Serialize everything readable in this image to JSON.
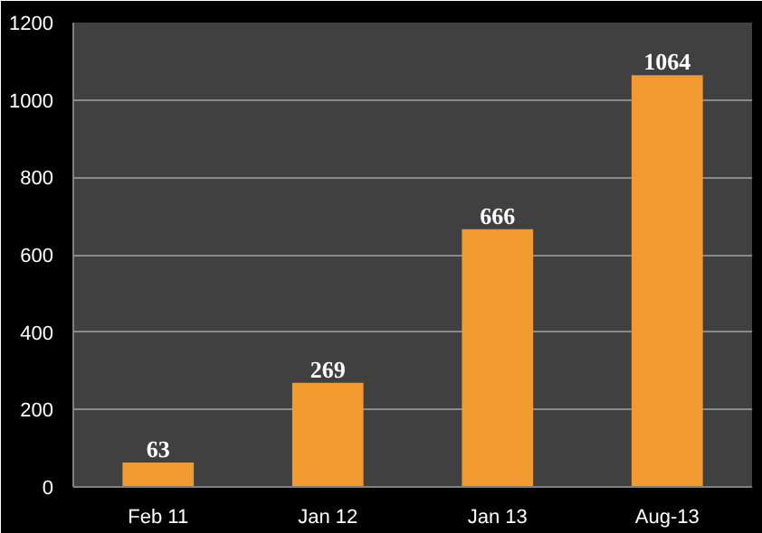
{
  "chart_data": {
    "type": "bar",
    "categories": [
      "Feb 11",
      "Jan 12",
      "Jan 13",
      "Aug-13"
    ],
    "values": [
      63,
      269,
      666,
      1064
    ],
    "color": "#f09a30",
    "ylim": [
      0,
      1200
    ],
    "yticks": [
      0,
      200,
      400,
      600,
      800,
      1000,
      1200
    ],
    "grid": "y",
    "data_labels": true
  }
}
